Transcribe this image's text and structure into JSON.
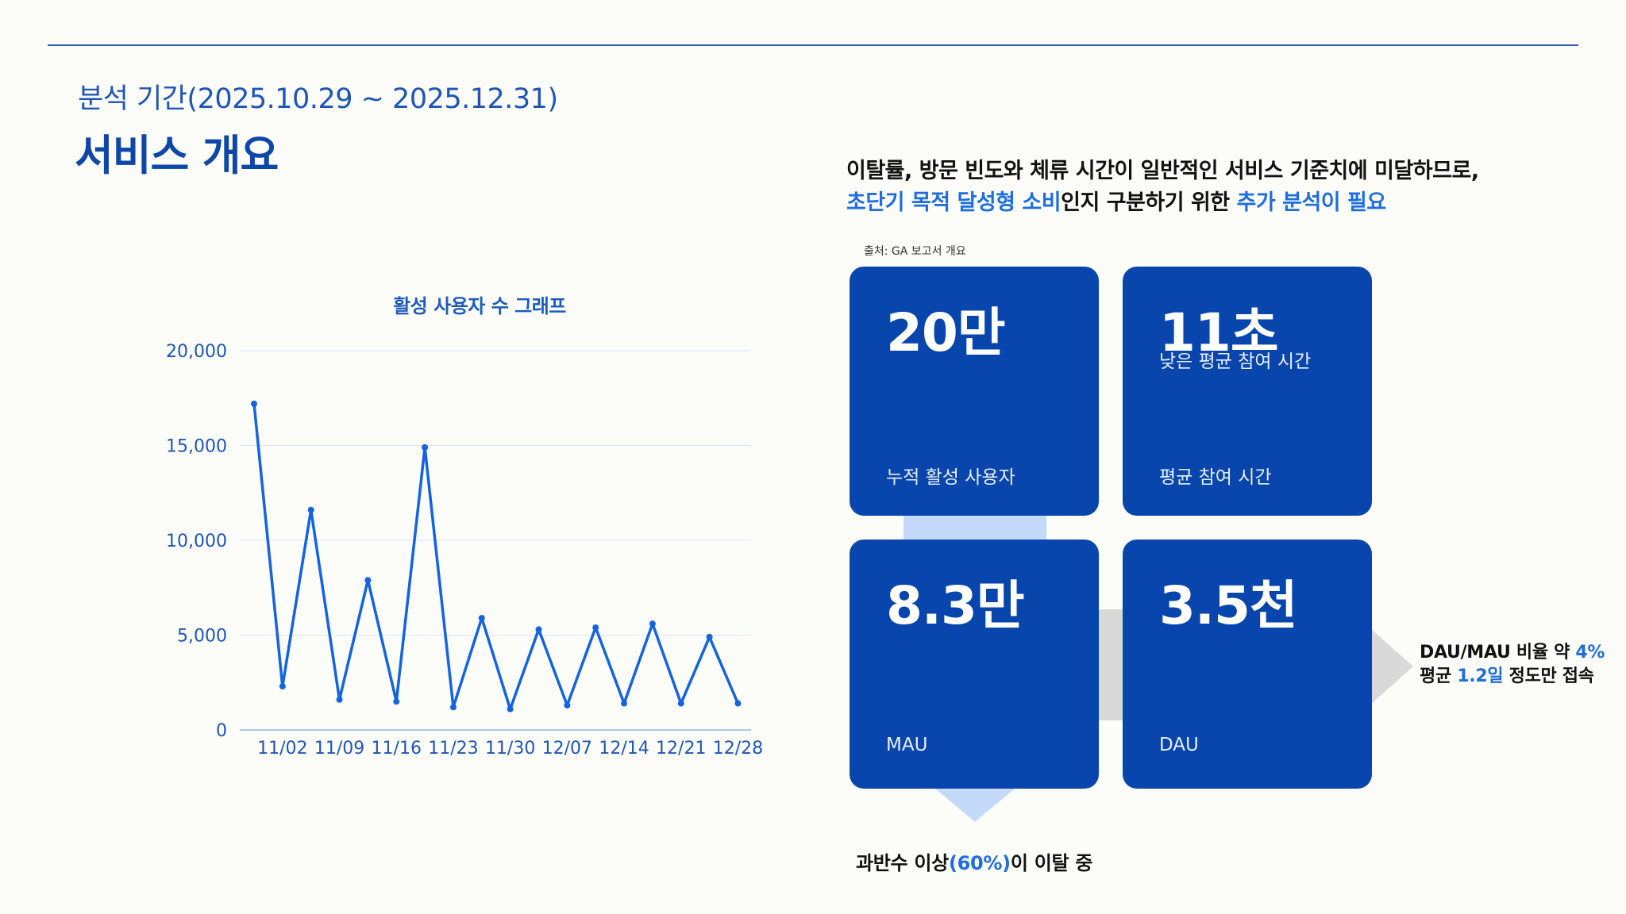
{
  "header": {
    "period": "분석 기간(2025.10.29 ~ 2025.12.31)",
    "title": "서비스 개요"
  },
  "headline": {
    "line1": "이탈률, 방문 빈도와 체류 시간이 일반적인 서비스 기준치에 미달하므로,",
    "line2_hl1": "초단기 목적 달성형 소비",
    "line2_mid": "인지 구분하기 위한 ",
    "line2_hl2": "추가 분석이 필요"
  },
  "source": "출처: GA 보고서 개요",
  "chart_data": {
    "type": "line",
    "title": "활성 사용자 수 그래프",
    "xlabel": "",
    "ylabel": "",
    "ylim": [
      0,
      20000
    ],
    "yticks": [
      "0",
      "5,000",
      "10,000",
      "15,000",
      "20,000"
    ],
    "ytick_values": [
      0,
      5000,
      10000,
      15000,
      20000
    ],
    "xticks": [
      "11/02",
      "11/09",
      "11/16",
      "11/23",
      "11/30",
      "12/07",
      "12/14",
      "12/21",
      "12/28"
    ],
    "grid": true,
    "series": [
      {
        "values": [
          17200,
          2300,
          11600,
          1600,
          7900,
          1500,
          14900,
          1200,
          5900,
          1100,
          5300,
          1300,
          5400,
          1400,
          5600,
          1400,
          4900,
          1400
        ]
      }
    ],
    "color": "#1463e0"
  },
  "cards": [
    {
      "value": "20만",
      "sub": "",
      "label": "누적 활성 사용자"
    },
    {
      "value": "11초",
      "sub": "낮은 평균 참여 시간",
      "label": "평균 참여 시간"
    },
    {
      "value": "8.3만",
      "sub": "",
      "label": "MAU"
    },
    {
      "value": "3.5천",
      "sub": "",
      "label": "DAU"
    }
  ],
  "note_right": {
    "p1": "DAU/MAU 비율 약 ",
    "v1": "4%",
    "p2": "평균 ",
    "v2": "1.2일",
    "p3": " 정도만 접속"
  },
  "note_bottom": {
    "p1": "과반수 이상",
    "v1": "(60%)",
    "p2": "이 이탈 중"
  },
  "colors": {
    "accent": "#0846ad",
    "highlight": "#1e6ee0",
    "title": "#0d47a8",
    "connector_light": "#c5dafa",
    "connector_gray": "#d9d9d9"
  }
}
